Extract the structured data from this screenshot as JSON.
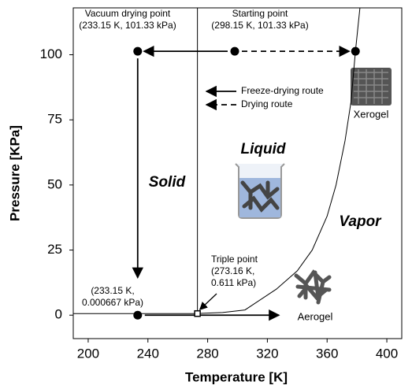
{
  "chart_data": {
    "type": "phase-diagram",
    "xlabel": "Temperature [K]",
    "ylabel": "Pressure [KPa]",
    "xlim": [
      190,
      410
    ],
    "ylim": [
      -9,
      118
    ],
    "xticks": [
      200,
      240,
      280,
      320,
      360,
      400
    ],
    "yticks": [
      0,
      25,
      50,
      75,
      100
    ],
    "vapor_curve": {
      "x": [
        273.16,
        290,
        305,
        326,
        340,
        350,
        360,
        366,
        372,
        376,
        379,
        382
      ],
      "y": [
        0.611,
        1,
        2,
        10,
        17,
        25,
        38,
        50,
        67,
        82,
        101.33,
        118
      ]
    },
    "melting_line_x": 273.16,
    "points": [
      {
        "x": 233.15,
        "y": 101.33,
        "label": [
          "Vacuum drying point",
          "(233.15 K, 101.33 kPa)"
        ]
      },
      {
        "x": 298.15,
        "y": 101.33,
        "label": [
          "Starting point",
          "(298.15 K, 101.33 kPa)"
        ]
      },
      {
        "x": 379,
        "y": 101.33
      },
      {
        "x": 233.15,
        "y": 0.000667,
        "label": [
          "(233.15 K,",
          "0.000667 kPa)"
        ]
      },
      {
        "x": 273.16,
        "y": 0.611,
        "label": [
          "Triple point",
          "(273.16 K,",
          "0.611 kPa)"
        ]
      }
    ],
    "routes": [
      {
        "name": "Freeze-drying route",
        "dashed": false,
        "segments": [
          [
            [
              298.15,
              101.33
            ],
            [
              233.15,
              101.33
            ]
          ],
          [
            [
              233.15,
              101.33
            ],
            [
              233.15,
              12
            ]
          ],
          [
            [
              233.15,
              0
            ],
            [
              332,
              0
            ]
          ]
        ]
      },
      {
        "name": "Drying route",
        "dashed": true,
        "segments": [
          [
            [
              298.15,
              101.33
            ],
            [
              379,
              101.33
            ]
          ]
        ]
      }
    ],
    "regions": [
      "Solid",
      "Liquid",
      "Vapor"
    ],
    "products": [
      "Xerogel",
      "Aerogel"
    ]
  }
}
